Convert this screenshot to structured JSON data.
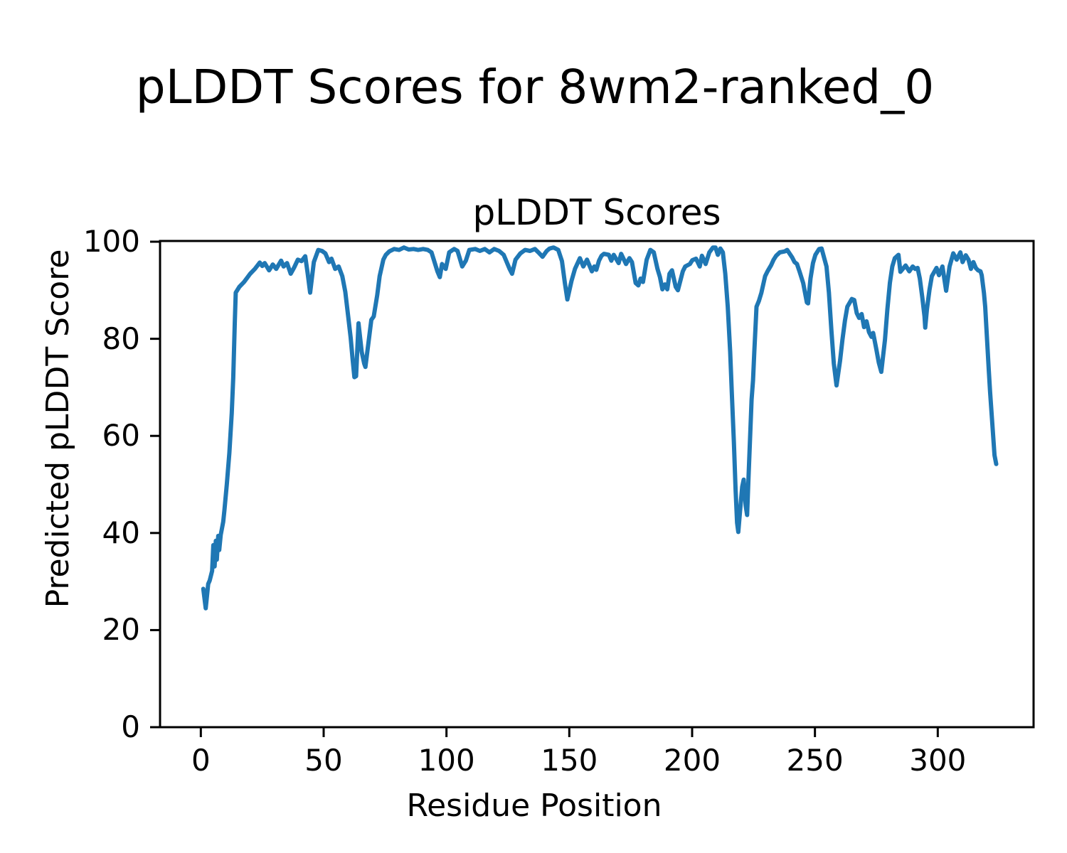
{
  "figure": {
    "suptitle": "pLDDT Scores for 8wm2-ranked_0",
    "background_color": "#ffffff",
    "text_color": "#000000"
  },
  "chart_data": {
    "type": "line",
    "title": "pLDDT Scores",
    "xlabel": "Residue Position",
    "ylabel": "Predicted pLDDT Score",
    "xlim": [
      -16.6,
      339.0
    ],
    "ylim": [
      0,
      100.15
    ],
    "xticks": [
      0,
      50,
      100,
      150,
      200,
      250,
      300
    ],
    "yticks": [
      0,
      20,
      40,
      60,
      80,
      100
    ],
    "grid": false,
    "legend": null,
    "line_color": "#1f77b4",
    "line_width": 6,
    "spine_color": "#000000",
    "spine_width": 3,
    "tick_length": 14,
    "tick_width": 3,
    "series": [
      {
        "name": "pLDDT",
        "points": [
          [
            1.0,
            28.5
          ],
          [
            1.5,
            26.5
          ],
          [
            2.0,
            24.5
          ],
          [
            3.0,
            29.5
          ],
          [
            3.6,
            30.2
          ],
          [
            4.6,
            32.2
          ],
          [
            5.1,
            37.5
          ],
          [
            5.6,
            33.1
          ],
          [
            6.1,
            38.4
          ],
          [
            6.5,
            34.5
          ],
          [
            7.1,
            39.4
          ],
          [
            7.5,
            36.5
          ],
          [
            8.1,
            39.6
          ],
          [
            9.1,
            42.3
          ],
          [
            9.6,
            44.7
          ],
          [
            10.6,
            50.1
          ],
          [
            11.6,
            56.4
          ],
          [
            12.6,
            64.7
          ],
          [
            13.2,
            72.0
          ],
          [
            13.8,
            83.0
          ],
          [
            14.2,
            89.5
          ],
          [
            15.7,
            90.7
          ],
          [
            17.6,
            91.7
          ],
          [
            20.1,
            93.4
          ],
          [
            22.0,
            94.4
          ],
          [
            24.0,
            95.7
          ],
          [
            25.0,
            95.0
          ],
          [
            26.0,
            95.6
          ],
          [
            27.8,
            94.1
          ],
          [
            29.3,
            95.3
          ],
          [
            30.7,
            94.4
          ],
          [
            32.7,
            96.1
          ],
          [
            33.7,
            94.9
          ],
          [
            35.1,
            95.6
          ],
          [
            36.6,
            93.4
          ],
          [
            38.0,
            94.7
          ],
          [
            39.5,
            96.3
          ],
          [
            41.0,
            96.0
          ],
          [
            42.5,
            97.0
          ],
          [
            43.5,
            93.5
          ],
          [
            44.5,
            89.5
          ],
          [
            46.0,
            95.8
          ],
          [
            47.8,
            98.3
          ],
          [
            49.3,
            98.1
          ],
          [
            50.7,
            97.6
          ],
          [
            52.2,
            95.8
          ],
          [
            53.2,
            96.5
          ],
          [
            54.7,
            94.4
          ],
          [
            56.1,
            94.9
          ],
          [
            57.6,
            92.9
          ],
          [
            58.8,
            89.7
          ],
          [
            60.0,
            84.6
          ],
          [
            61.0,
            80.2
          ],
          [
            61.8,
            75.8
          ],
          [
            62.5,
            72.1
          ],
          [
            63.2,
            72.3
          ],
          [
            64.2,
            83.2
          ],
          [
            65.5,
            77.3
          ],
          [
            66.5,
            74.9
          ],
          [
            67.0,
            74.2
          ],
          [
            68.4,
            79.8
          ],
          [
            69.4,
            83.9
          ],
          [
            70.4,
            84.6
          ],
          [
            71.8,
            89.0
          ],
          [
            72.8,
            92.9
          ],
          [
            74.3,
            96.3
          ],
          [
            75.3,
            97.3
          ],
          [
            76.7,
            98.0
          ],
          [
            78.7,
            98.5
          ],
          [
            80.7,
            98.3
          ],
          [
            82.7,
            98.8
          ],
          [
            84.6,
            98.4
          ],
          [
            86.6,
            98.5
          ],
          [
            88.5,
            98.3
          ],
          [
            90.5,
            98.5
          ],
          [
            92.4,
            98.3
          ],
          [
            93.9,
            97.8
          ],
          [
            96.3,
            93.9
          ],
          [
            97.3,
            92.7
          ],
          [
            98.2,
            95.4
          ],
          [
            99.7,
            94.4
          ],
          [
            101.1,
            97.8
          ],
          [
            103.1,
            98.5
          ],
          [
            104.5,
            98.1
          ],
          [
            106.4,
            94.9
          ],
          [
            107.9,
            96.1
          ],
          [
            109.3,
            98.3
          ],
          [
            111.7,
            98.5
          ],
          [
            113.6,
            98.1
          ],
          [
            115.6,
            98.5
          ],
          [
            117.5,
            97.8
          ],
          [
            119.4,
            98.5
          ],
          [
            121.4,
            98.1
          ],
          [
            123.3,
            97.3
          ],
          [
            125.7,
            94.4
          ],
          [
            126.7,
            93.4
          ],
          [
            128.1,
            96.3
          ],
          [
            130.1,
            97.6
          ],
          [
            132.0,
            98.3
          ],
          [
            134.0,
            98.1
          ],
          [
            136.0,
            98.5
          ],
          [
            137.8,
            97.6
          ],
          [
            139.1,
            96.9
          ],
          [
            140.8,
            98.1
          ],
          [
            142.0,
            98.6
          ],
          [
            143.6,
            98.8
          ],
          [
            145.5,
            98.3
          ],
          [
            147.0,
            96.0
          ],
          [
            148.2,
            91.5
          ],
          [
            149.2,
            88.1
          ],
          [
            150.9,
            91.9
          ],
          [
            152.3,
            94.4
          ],
          [
            154.3,
            96.6
          ],
          [
            155.7,
            94.9
          ],
          [
            157.2,
            96.3
          ],
          [
            159.2,
            93.9
          ],
          [
            160.2,
            94.9
          ],
          [
            161.0,
            94.2
          ],
          [
            162.1,
            96.1
          ],
          [
            163.1,
            97.1
          ],
          [
            164.1,
            97.5
          ],
          [
            166.1,
            97.3
          ],
          [
            167.1,
            96.1
          ],
          [
            168.1,
            97.3
          ],
          [
            170.1,
            95.6
          ],
          [
            171.1,
            97.5
          ],
          [
            173.1,
            95.4
          ],
          [
            174.5,
            96.6
          ],
          [
            175.5,
            95.8
          ],
          [
            177.0,
            91.5
          ],
          [
            178.1,
            91.0
          ],
          [
            179.0,
            92.4
          ],
          [
            180.0,
            91.7
          ],
          [
            181.5,
            96.3
          ],
          [
            183.0,
            98.3
          ],
          [
            184.4,
            97.8
          ],
          [
            185.9,
            94.4
          ],
          [
            186.9,
            92.7
          ],
          [
            187.9,
            90.2
          ],
          [
            188.9,
            91.2
          ],
          [
            189.9,
            90.2
          ],
          [
            190.8,
            93.4
          ],
          [
            191.8,
            94.1
          ],
          [
            193.3,
            90.7
          ],
          [
            194.2,
            90.0
          ],
          [
            196.2,
            93.9
          ],
          [
            197.2,
            94.9
          ],
          [
            199.1,
            95.4
          ],
          [
            200.1,
            96.2
          ],
          [
            201.6,
            96.5
          ],
          [
            203.1,
            94.9
          ],
          [
            204.0,
            97.1
          ],
          [
            205.5,
            95.4
          ],
          [
            207.0,
            97.8
          ],
          [
            208.5,
            98.8
          ],
          [
            209.5,
            98.8
          ],
          [
            210.5,
            97.3
          ],
          [
            211.5,
            98.6
          ],
          [
            212.5,
            97.8
          ],
          [
            213.5,
            93.4
          ],
          [
            214.5,
            86.6
          ],
          [
            215.5,
            77.3
          ],
          [
            216.2,
            68.5
          ],
          [
            217.0,
            58.7
          ],
          [
            217.7,
            48.9
          ],
          [
            218.3,
            42.1
          ],
          [
            218.8,
            40.2
          ],
          [
            219.6,
            45.1
          ],
          [
            220.4,
            49.5
          ],
          [
            221.0,
            51.0
          ],
          [
            221.8,
            45.6
          ],
          [
            222.4,
            43.7
          ],
          [
            223.0,
            51.9
          ],
          [
            223.6,
            59.7
          ],
          [
            224.2,
            67.5
          ],
          [
            224.8,
            71.4
          ],
          [
            225.3,
            77.3
          ],
          [
            226.2,
            86.6
          ],
          [
            227.2,
            87.8
          ],
          [
            228.2,
            89.5
          ],
          [
            229.7,
            92.9
          ],
          [
            230.7,
            93.9
          ],
          [
            232.2,
            95.2
          ],
          [
            233.2,
            96.3
          ],
          [
            234.2,
            97.1
          ],
          [
            235.7,
            97.8
          ],
          [
            237.7,
            98.0
          ],
          [
            238.7,
            98.3
          ],
          [
            240.7,
            96.8
          ],
          [
            241.7,
            95.8
          ],
          [
            242.7,
            95.4
          ],
          [
            243.7,
            93.9
          ],
          [
            245.2,
            91.5
          ],
          [
            246.7,
            87.5
          ],
          [
            247.2,
            87.3
          ],
          [
            248.2,
            92.4
          ],
          [
            249.2,
            95.6
          ],
          [
            250.2,
            97.3
          ],
          [
            251.7,
            98.5
          ],
          [
            252.7,
            98.6
          ],
          [
            254.7,
            94.9
          ],
          [
            255.7,
            89.5
          ],
          [
            256.7,
            81.7
          ],
          [
            257.7,
            74.9
          ],
          [
            258.8,
            70.4
          ],
          [
            260.2,
            75.4
          ],
          [
            261.2,
            79.8
          ],
          [
            262.2,
            83.7
          ],
          [
            263.2,
            86.6
          ],
          [
            265.0,
            88.2
          ],
          [
            266.0,
            88.0
          ],
          [
            267.0,
            85.3
          ],
          [
            268.0,
            84.3
          ],
          [
            269.0,
            85.1
          ],
          [
            270.0,
            82.4
          ],
          [
            271.0,
            83.6
          ],
          [
            272.0,
            81.4
          ],
          [
            273.0,
            80.4
          ],
          [
            273.7,
            81.2
          ],
          [
            275.0,
            77.8
          ],
          [
            276.0,
            75.1
          ],
          [
            277.0,
            73.2
          ],
          [
            278.5,
            79.8
          ],
          [
            279.5,
            86.1
          ],
          [
            280.5,
            91.5
          ],
          [
            281.5,
            94.9
          ],
          [
            282.5,
            96.6
          ],
          [
            284.0,
            97.3
          ],
          [
            284.8,
            93.8
          ],
          [
            286.9,
            95.1
          ],
          [
            288.4,
            93.9
          ],
          [
            289.8,
            94.9
          ],
          [
            290.8,
            94.4
          ],
          [
            291.8,
            94.6
          ],
          [
            292.7,
            92.4
          ],
          [
            293.7,
            88.5
          ],
          [
            294.6,
            84.6
          ],
          [
            294.9,
            82.3
          ],
          [
            295.6,
            86.1
          ],
          [
            296.6,
            90.0
          ],
          [
            297.6,
            92.9
          ],
          [
            299.5,
            94.6
          ],
          [
            300.5,
            93.1
          ],
          [
            301.9,
            94.9
          ],
          [
            303.4,
            89.9
          ],
          [
            304.8,
            94.9
          ],
          [
            306.3,
            97.6
          ],
          [
            307.7,
            96.3
          ],
          [
            309.2,
            97.8
          ],
          [
            310.1,
            95.8
          ],
          [
            311.4,
            97.2
          ],
          [
            312.5,
            96.3
          ],
          [
            313.5,
            94.4
          ],
          [
            314.5,
            95.8
          ],
          [
            315.5,
            94.6
          ],
          [
            316.4,
            94.1
          ],
          [
            317.4,
            93.9
          ],
          [
            317.9,
            93.1
          ],
          [
            318.8,
            89.5
          ],
          [
            319.3,
            86.6
          ],
          [
            319.8,
            82.2
          ],
          [
            320.3,
            77.8
          ],
          [
            320.8,
            73.4
          ],
          [
            321.3,
            69.0
          ],
          [
            322.2,
            62.5
          ],
          [
            323.1,
            56.0
          ],
          [
            323.8,
            54.2
          ]
        ]
      }
    ]
  }
}
